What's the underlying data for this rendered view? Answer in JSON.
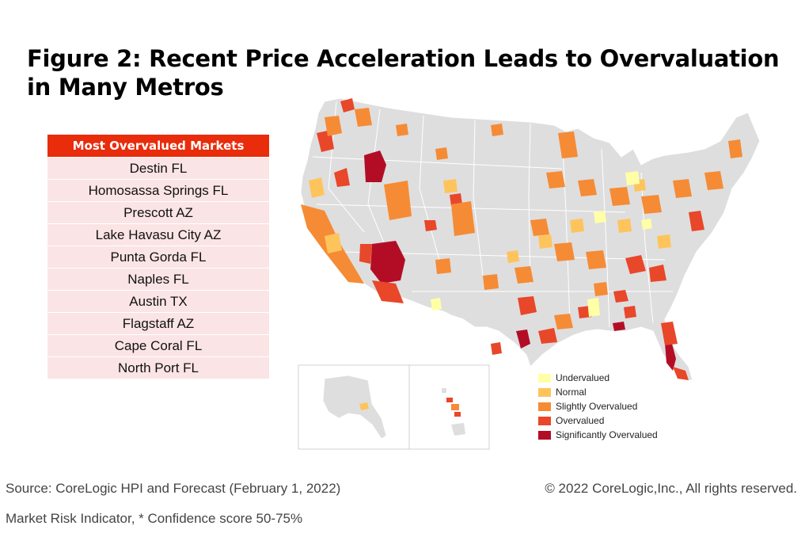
{
  "title": "Figure 2: Recent Price Acceleration Leads to Overvaluation in Many Metros",
  "table": {
    "header": "Most Overvalued Markets",
    "rows": [
      "Destin FL",
      "Homosassa Springs FL",
      "Prescott AZ",
      "Lake Havasu City AZ",
      "Punta Gorda FL",
      "Naples FL",
      "Austin TX",
      "Flagstaff AZ",
      "Cape Coral FL",
      "North Port FL"
    ]
  },
  "legend": [
    {
      "label": "Undervalued",
      "color": "#ffffa6"
    },
    {
      "label": "Normal",
      "color": "#fec45c"
    },
    {
      "label": "Slightly Overvalued",
      "color": "#f68b35"
    },
    {
      "label": "Overvalued",
      "color": "#e8472a"
    },
    {
      "label": "Significantly Overvalued",
      "color": "#b30d26"
    }
  ],
  "colors": {
    "land": "#dedede",
    "border": "#ffffff",
    "table_header": "#e82c0c",
    "table_row": "#fbe4e5"
  },
  "footer": {
    "source": "Source: CoreLogic HPI and Forecast (February 1, 2022)",
    "copyright": "© 2022 CoreLogic,Inc., All rights reserved.",
    "note": "Market Risk Indicator, * Confidence score 50-75%"
  }
}
